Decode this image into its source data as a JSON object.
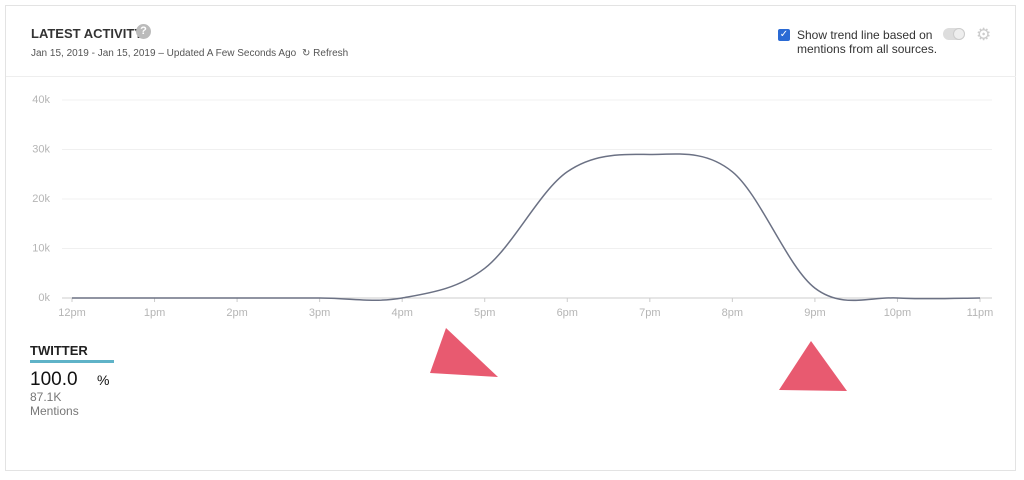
{
  "header": {
    "title": "LATEST ACTIVITY",
    "date_range": "Jan 15, 2019 - Jan 15, 2019 – Updated A Few Seconds Ago",
    "refresh": "Refresh"
  },
  "trend_option": {
    "label": "Show trend line based on mentions from all sources."
  },
  "chart_data": {
    "type": "line",
    "categories": [
      "12pm",
      "1pm",
      "2pm",
      "3pm",
      "4pm",
      "5pm",
      "6pm",
      "7pm",
      "8pm",
      "9pm",
      "10pm",
      "11pm"
    ],
    "series": [
      {
        "name": "TWITTER",
        "color": "#6b7184",
        "values": [
          0,
          0,
          0,
          0,
          0,
          6000,
          25500,
          29000,
          25500,
          2000,
          0,
          0
        ]
      }
    ],
    "ylim": [
      0,
      40000
    ],
    "yticks": [
      {
        "value": 0,
        "label": "0k"
      },
      {
        "value": 10000,
        "label": "10k"
      },
      {
        "value": 20000,
        "label": "20k"
      },
      {
        "value": 30000,
        "label": "30k"
      },
      {
        "value": 40000,
        "label": "40k"
      }
    ],
    "grid": true
  },
  "source": {
    "name": "TWITTER",
    "share": "100.0",
    "share_unit": "%",
    "mentions": "87.1K",
    "mentions_label": "Mentions"
  }
}
